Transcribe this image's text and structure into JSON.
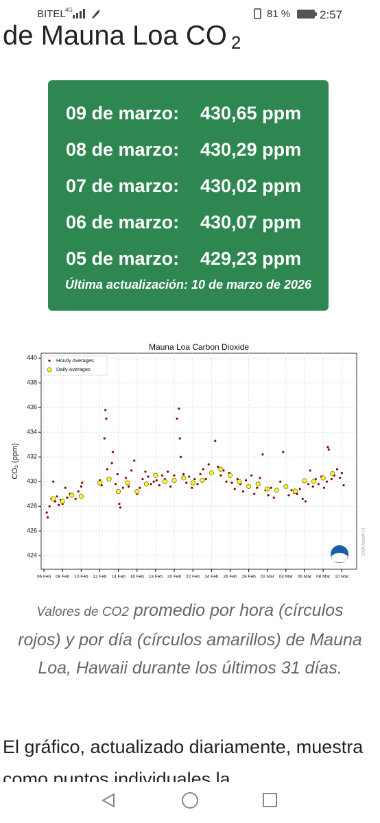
{
  "status_bar": {
    "carrier": "BITEL",
    "network": "4G",
    "battery": "81 %",
    "time": "2:57"
  },
  "header": {
    "title": "de Mauna Loa CO",
    "title_sub": "2"
  },
  "readings": {
    "rows": [
      {
        "date": "09 de marzo:",
        "value": "430,65 ppm"
      },
      {
        "date": "08 de marzo:",
        "value": "430,29 ppm"
      },
      {
        "date": "07 de marzo:",
        "value": "430,02 ppm"
      },
      {
        "date": "06 de marzo:",
        "value": "430,07 ppm"
      },
      {
        "date": "05 de marzo:",
        "value": "429,23 ppm"
      }
    ],
    "updated": "Última actualización: 10 de marzo de 2026"
  },
  "chart_data": {
    "type": "scatter",
    "title": "Mauna Loa Carbon Dioxide",
    "y_label": "CO₂ (ppm)",
    "watermark": "2026-March-10",
    "grid": true,
    "legend": "upper left",
    "xlim": [
      36.7,
      70.6
    ],
    "ylim": [
      422.9,
      440.4
    ],
    "yticks": [
      424,
      426,
      428,
      430,
      432,
      434,
      436,
      438,
      440
    ],
    "xticks": [
      {
        "value": 37,
        "label": "06 Feb"
      },
      {
        "value": 39,
        "label": "08 Feb"
      },
      {
        "value": 41,
        "label": "10 Feb"
      },
      {
        "value": 43,
        "label": "12 Feb"
      },
      {
        "value": 45,
        "label": "14 Feb"
      },
      {
        "value": 47,
        "label": "16 Feb"
      },
      {
        "value": 49,
        "label": "18 Feb"
      },
      {
        "value": 51,
        "label": "20 Feb"
      },
      {
        "value": 53,
        "label": "22 Feb"
      },
      {
        "value": 55,
        "label": "24 Feb"
      },
      {
        "value": 57,
        "label": "26 Feb"
      },
      {
        "value": 59,
        "label": "28 Feb"
      },
      {
        "value": 61,
        "label": "02 Mar"
      },
      {
        "value": 63,
        "label": "04 Mar"
      },
      {
        "value": 65,
        "label": "06 Mar"
      },
      {
        "value": 67,
        "label": "08 Mar"
      },
      {
        "value": 69,
        "label": "10 Mar"
      }
    ],
    "series": [
      {
        "name": "Hourly Averages",
        "color": "#8b0000",
        "marker": "dot",
        "x": [
          37.3,
          37.4,
          37.6,
          37.8,
          38.0,
          38.2,
          38.4,
          38.6,
          38.8,
          39.0,
          39.3,
          39.5,
          39.8,
          40.1,
          40.4,
          40.7,
          41.0,
          41.1,
          43.0,
          43.2,
          43.5,
          43.6,
          43.7,
          43.8,
          44.0,
          44.3,
          44.4,
          44.7,
          44.9,
          45.1,
          45.2,
          45.5,
          45.8,
          46.1,
          46.4,
          46.7,
          47.0,
          47.3,
          47.6,
          47.9,
          48.2,
          48.5,
          48.8,
          49.1,
          49.4,
          49.7,
          50.0,
          50.3,
          50.6,
          51.0,
          51.3,
          51.5,
          51.6,
          51.7,
          52.0,
          52.3,
          52.6,
          52.9,
          53.2,
          53.5,
          53.8,
          54.1,
          54.4,
          54.7,
          55.0,
          55.4,
          55.7,
          56.0,
          56.3,
          56.6,
          56.9,
          57.2,
          57.5,
          57.8,
          58.1,
          58.4,
          58.7,
          59.0,
          59.3,
          59.6,
          59.9,
          60.2,
          60.5,
          60.8,
          61.1,
          61.4,
          61.7,
          62.0,
          62.4,
          62.7,
          63.0,
          63.3,
          63.6,
          63.9,
          64.2,
          64.5,
          64.8,
          65.1,
          65.4,
          65.6,
          65.9,
          66.2,
          66.5,
          66.8,
          67.1,
          67.4,
          67.5,
          67.6,
          67.9,
          68.2,
          68.5,
          68.8,
          69.0,
          69.2
        ],
        "values": [
          427.5,
          427.1,
          428.0,
          428.6,
          430.0,
          428.4,
          428.8,
          428.1,
          428.5,
          428.2,
          429.5,
          428.7,
          429.0,
          428.9,
          428.6,
          429.2,
          429.6,
          429.9,
          430.1,
          429.7,
          433.5,
          435.8,
          435.1,
          431.0,
          430.3,
          431.5,
          432.4,
          429.8,
          430.6,
          428.2,
          427.9,
          429.5,
          430.3,
          429.6,
          430.9,
          431.7,
          429.0,
          429.5,
          430.2,
          430.8,
          430.4,
          429.8,
          430.0,
          430.1,
          429.7,
          430.5,
          430.2,
          430.8,
          429.6,
          430.5,
          435.1,
          435.9,
          433.5,
          432.0,
          430.6,
          429.9,
          430.4,
          429.5,
          430.2,
          429.8,
          430.6,
          431.0,
          430.2,
          431.4,
          430.8,
          433.3,
          431.2,
          430.5,
          430.9,
          430.0,
          430.7,
          429.9,
          429.4,
          430.2,
          429.8,
          429.2,
          430.1,
          429.6,
          430.5,
          429.0,
          429.5,
          430.3,
          432.2,
          429.3,
          428.9,
          429.5,
          428.7,
          429.2,
          430.0,
          432.4,
          429.6,
          428.9,
          429.3,
          429.1,
          429.0,
          429.4,
          428.6,
          428.4,
          429.8,
          430.9,
          429.6,
          430.2,
          429.8,
          430.4,
          429.5,
          430.0,
          432.8,
          432.6,
          430.2,
          430.5,
          431.0,
          430.3,
          430.7,
          429.7
        ]
      },
      {
        "name": "Daily Averages",
        "color": "#ffff00",
        "marker": "circle",
        "x": [
          38,
          39,
          40,
          41,
          43,
          44,
          45,
          46,
          47,
          48,
          49,
          50,
          51,
          52,
          53,
          54,
          55,
          56,
          57,
          58,
          59,
          60,
          61,
          62,
          63,
          64,
          65,
          66,
          67,
          68
        ],
        "values": [
          428.6,
          428.4,
          428.9,
          428.8,
          429.9,
          430.2,
          429.2,
          429.9,
          429.2,
          429.8,
          430.5,
          430.0,
          430.1,
          430.3,
          429.9,
          430.1,
          430.7,
          431.0,
          430.5,
          430.0,
          429.6,
          429.8,
          429.4,
          429.3,
          429.6,
          429.23,
          430.07,
          430.02,
          430.29,
          430.65
        ]
      }
    ]
  },
  "caption": {
    "prefix": "Valores de CO2",
    "text": "promedio por hora (círculos rojos) y por día (círculos amarillos) de Mauna Loa, Hawaii durante los últimos 31 días."
  },
  "body": {
    "paragraph": "El gráfico, actualizado diariamente, muestra como puntos individuales la"
  }
}
